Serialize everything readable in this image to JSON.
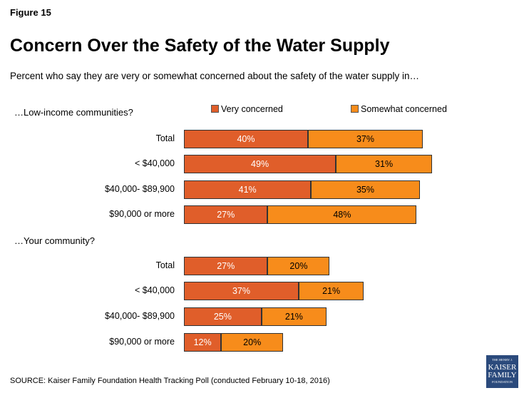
{
  "figure_label": "Figure 15",
  "title": "Concern Over the Safety of the Water Supply",
  "subtitle": "Percent who say they are very or somewhat concerned about the safety of the water supply in…",
  "source": "SOURCE: Kaiser Family Foundation Health Tracking Poll (conducted February 10-18, 2016)",
  "logo_text": "THE HENRY J. KAISER FAMILY FOUNDATION",
  "chart_data": {
    "type": "bar",
    "orientation": "horizontal",
    "stacked": true,
    "legend_position": "top",
    "colors": {
      "very": "#E05E2A",
      "somewhat": "#F78C1B"
    },
    "series_names": [
      "Very concerned",
      "Somewhat concerned"
    ],
    "groups": [
      {
        "label": "…Low-income communities?",
        "categories": [
          "Total",
          "< $40,000",
          "$40,000- $89,900",
          "$90,000 or more"
        ],
        "very": [
          40,
          49,
          41,
          27
        ],
        "somewhat": [
          37,
          31,
          35,
          48
        ]
      },
      {
        "label": "…Your community?",
        "categories": [
          "Total",
          "< $40,000",
          "$40,000- $89,900",
          "$90,000 or more"
        ],
        "very": [
          27,
          37,
          25,
          12
        ],
        "somewhat": [
          20,
          21,
          21,
          20
        ]
      }
    ]
  }
}
